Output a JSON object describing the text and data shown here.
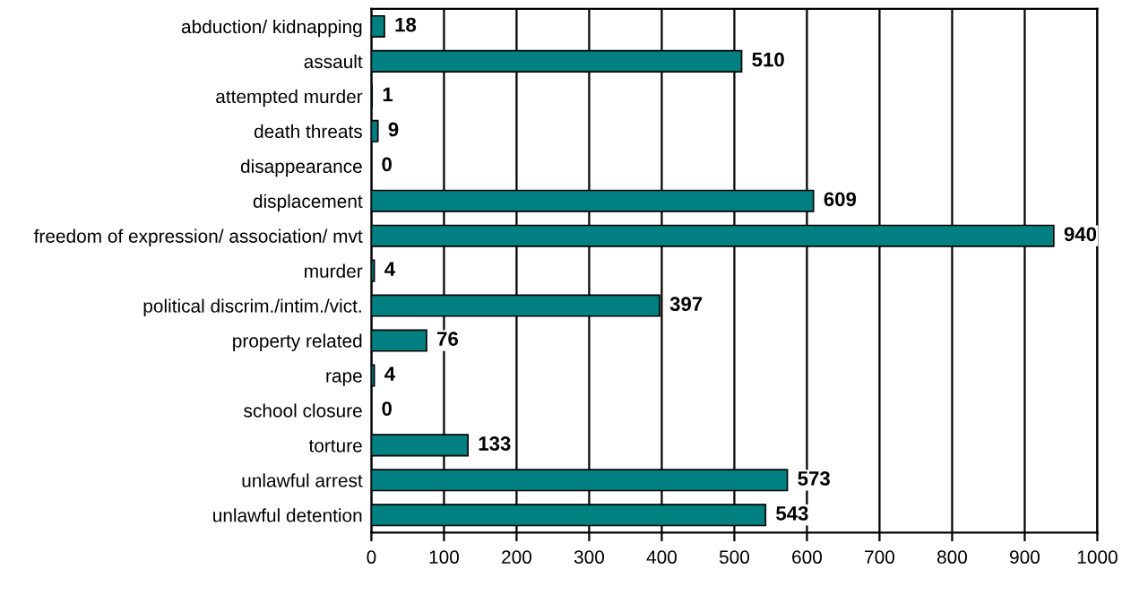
{
  "chart_data": {
    "type": "bar",
    "orientation": "horizontal",
    "categories": [
      "abduction/ kidnapping",
      "assault",
      "attempted murder",
      "death threats",
      "disappearance",
      "displacement",
      "freedom of expression/ association/ mvt",
      "murder",
      "political discrim./intim./vict.",
      "property related",
      "rape",
      "school closure",
      "torture",
      "unlawful arrest",
      "unlawful detention"
    ],
    "values": [
      18,
      510,
      1,
      9,
      0,
      609,
      940,
      4,
      397,
      76,
      4,
      0,
      133,
      573,
      543
    ],
    "color": "#008080",
    "xlim": [
      0,
      1000
    ],
    "xticks": [
      0,
      100,
      200,
      300,
      400,
      500,
      600,
      700,
      800,
      900,
      1000
    ],
    "grid": "x",
    "data_labels": true
  }
}
